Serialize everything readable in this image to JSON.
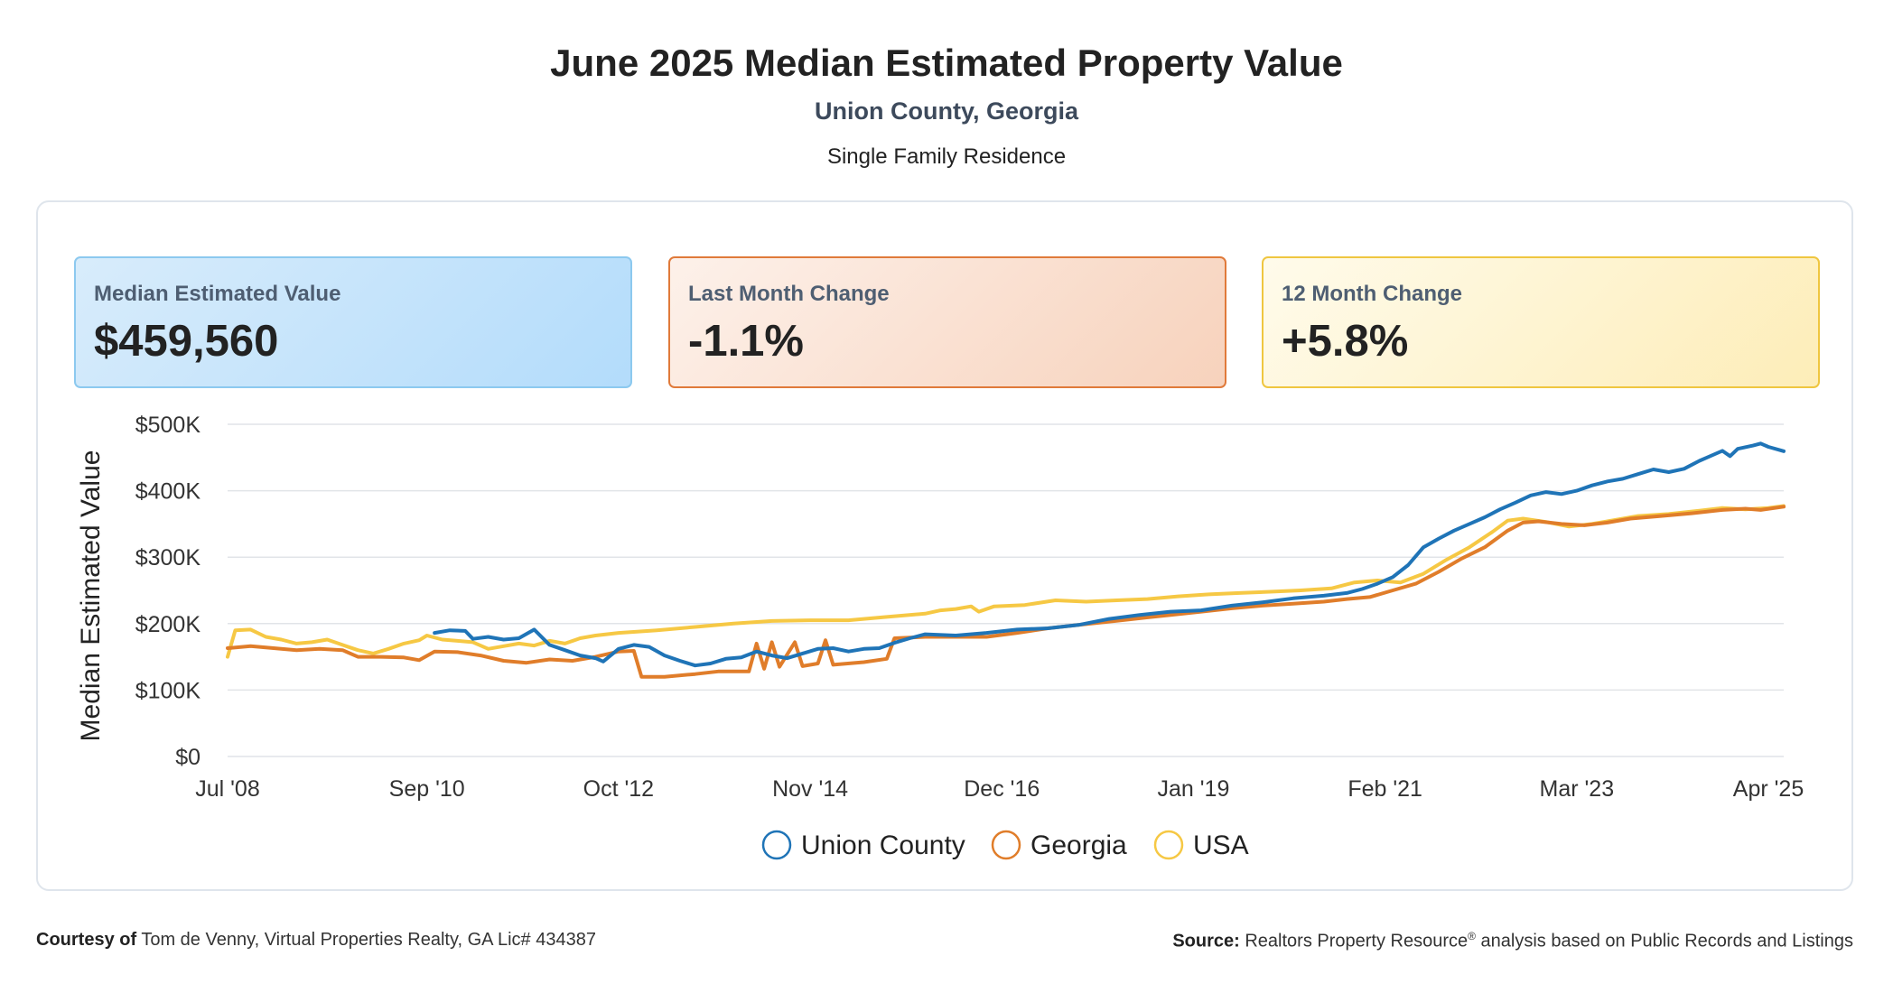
{
  "header": {
    "title": "June 2025 Median Estimated Property Value",
    "subtitle": "Union County, Georgia",
    "property_type": "Single Family Residence"
  },
  "cards": [
    {
      "label": "Median Estimated Value",
      "value": "$459,560"
    },
    {
      "label": "Last Month Change",
      "value": "-1.1%"
    },
    {
      "label": "12 Month Change",
      "value": "+5.8%"
    }
  ],
  "colors": {
    "union_county": "#1f74b7",
    "georgia": "#e07d2a",
    "usa": "#f6c844"
  },
  "chart_data": {
    "type": "line",
    "title": "",
    "ylabel": "Median Estimated Value",
    "xlabel": "",
    "y_ticks": [
      "$0",
      "$100K",
      "$200K",
      "$300K",
      "$400K",
      "$500K"
    ],
    "y_tick_values": [
      0,
      100000,
      200000,
      300000,
      400000,
      500000
    ],
    "ylim": [
      0,
      500000
    ],
    "x_ticks": [
      "Jul '08",
      "Sep '10",
      "Oct '12",
      "Nov '14",
      "Dec '16",
      "Jan '19",
      "Feb '21",
      "Mar '23",
      "Apr '25"
    ],
    "x_tick_dates": [
      "2008-07",
      "2010-09",
      "2012-10",
      "2014-11",
      "2016-12",
      "2019-01",
      "2021-02",
      "2023-03",
      "2025-04"
    ],
    "xlim": [
      "2008-07",
      "2025-06"
    ],
    "grid": "horizontal",
    "legend_position": "bottom",
    "series": [
      {
        "name": "Union County",
        "color": "#1f74b7",
        "points": [
          [
            "2010-10",
            186000
          ],
          [
            "2010-12",
            190000
          ],
          [
            "2011-02",
            189000
          ],
          [
            "2011-03",
            177000
          ],
          [
            "2011-05",
            180000
          ],
          [
            "2011-07",
            176000
          ],
          [
            "2011-09",
            178000
          ],
          [
            "2011-11",
            191000
          ],
          [
            "2012-01",
            168000
          ],
          [
            "2012-03",
            160000
          ],
          [
            "2012-05",
            152000
          ],
          [
            "2012-07",
            148000
          ],
          [
            "2012-08",
            143000
          ],
          [
            "2012-10",
            162000
          ],
          [
            "2012-12",
            168000
          ],
          [
            "2013-02",
            165000
          ],
          [
            "2013-04",
            152000
          ],
          [
            "2013-06",
            144000
          ],
          [
            "2013-08",
            137000
          ],
          [
            "2013-10",
            140000
          ],
          [
            "2013-12",
            147000
          ],
          [
            "2014-02",
            149000
          ],
          [
            "2014-04",
            158000
          ],
          [
            "2014-06",
            152000
          ],
          [
            "2014-08",
            148000
          ],
          [
            "2014-10",
            155000
          ],
          [
            "2014-12",
            162000
          ],
          [
            "2015-02",
            163000
          ],
          [
            "2015-04",
            158000
          ],
          [
            "2015-06",
            162000
          ],
          [
            "2015-08",
            163000
          ],
          [
            "2015-10",
            171000
          ],
          [
            "2015-12",
            178000
          ],
          [
            "2016-02",
            184000
          ],
          [
            "2016-06",
            182000
          ],
          [
            "2016-10",
            186000
          ],
          [
            "2017-02",
            191000
          ],
          [
            "2017-06",
            193000
          ],
          [
            "2017-10",
            198000
          ],
          [
            "2018-02",
            207000
          ],
          [
            "2018-06",
            213000
          ],
          [
            "2018-10",
            218000
          ],
          [
            "2019-02",
            220000
          ],
          [
            "2019-06",
            227000
          ],
          [
            "2019-10",
            232000
          ],
          [
            "2020-02",
            238000
          ],
          [
            "2020-06",
            242000
          ],
          [
            "2020-09",
            246000
          ],
          [
            "2020-11",
            252000
          ],
          [
            "2021-01",
            260000
          ],
          [
            "2021-03",
            270000
          ],
          [
            "2021-05",
            288000
          ],
          [
            "2021-07",
            315000
          ],
          [
            "2021-09",
            328000
          ],
          [
            "2021-11",
            340000
          ],
          [
            "2022-01",
            350000
          ],
          [
            "2022-03",
            360000
          ],
          [
            "2022-05",
            372000
          ],
          [
            "2022-07",
            382000
          ],
          [
            "2022-09",
            393000
          ],
          [
            "2022-11",
            398000
          ],
          [
            "2023-01",
            395000
          ],
          [
            "2023-03",
            400000
          ],
          [
            "2023-05",
            408000
          ],
          [
            "2023-07",
            414000
          ],
          [
            "2023-09",
            418000
          ],
          [
            "2023-11",
            425000
          ],
          [
            "2024-01",
            432000
          ],
          [
            "2024-03",
            428000
          ],
          [
            "2024-05",
            433000
          ],
          [
            "2024-07",
            445000
          ],
          [
            "2024-08",
            450000
          ],
          [
            "2024-10",
            460000
          ],
          [
            "2024-11",
            452000
          ],
          [
            "2024-12",
            463000
          ],
          [
            "2025-02",
            468000
          ],
          [
            "2025-03",
            471000
          ],
          [
            "2025-04",
            466000
          ],
          [
            "2025-06",
            459560
          ]
        ]
      },
      {
        "name": "Georgia",
        "color": "#e07d2a",
        "points": [
          [
            "2008-07",
            163000
          ],
          [
            "2008-10",
            166000
          ],
          [
            "2009-01",
            163000
          ],
          [
            "2009-04",
            160000
          ],
          [
            "2009-07",
            162000
          ],
          [
            "2009-10",
            160000
          ],
          [
            "2009-12",
            150000
          ],
          [
            "2010-03",
            150000
          ],
          [
            "2010-06",
            149000
          ],
          [
            "2010-08",
            145000
          ],
          [
            "2010-10",
            158000
          ],
          [
            "2011-01",
            157000
          ],
          [
            "2011-04",
            152000
          ],
          [
            "2011-07",
            144000
          ],
          [
            "2011-10",
            141000
          ],
          [
            "2012-01",
            146000
          ],
          [
            "2012-04",
            144000
          ],
          [
            "2012-07",
            150000
          ],
          [
            "2012-10",
            158000
          ],
          [
            "2012-12",
            159000
          ],
          [
            "2013-01",
            120000
          ],
          [
            "2013-04",
            120000
          ],
          [
            "2013-08",
            124000
          ],
          [
            "2013-11",
            128000
          ],
          [
            "2014-03",
            128000
          ],
          [
            "2014-04",
            170000
          ],
          [
            "2014-05",
            132000
          ],
          [
            "2014-06",
            172000
          ],
          [
            "2014-07",
            135000
          ],
          [
            "2014-09",
            172000
          ],
          [
            "2014-10",
            136000
          ],
          [
            "2014-12",
            140000
          ],
          [
            "2015-01",
            175000
          ],
          [
            "2015-02",
            138000
          ],
          [
            "2015-06",
            142000
          ],
          [
            "2015-09",
            147000
          ],
          [
            "2015-10",
            178000
          ],
          [
            "2016-02",
            180000
          ],
          [
            "2016-06",
            180000
          ],
          [
            "2016-10",
            180000
          ],
          [
            "2017-02",
            186000
          ],
          [
            "2017-06",
            193000
          ],
          [
            "2017-10",
            198000
          ],
          [
            "2018-02",
            203000
          ],
          [
            "2018-06",
            208000
          ],
          [
            "2018-10",
            213000
          ],
          [
            "2019-02",
            218000
          ],
          [
            "2019-06",
            223000
          ],
          [
            "2019-10",
            227000
          ],
          [
            "2020-02",
            230000
          ],
          [
            "2020-06",
            233000
          ],
          [
            "2020-09",
            237000
          ],
          [
            "2020-12",
            240000
          ],
          [
            "2021-03",
            250000
          ],
          [
            "2021-06",
            260000
          ],
          [
            "2021-09",
            278000
          ],
          [
            "2021-12",
            298000
          ],
          [
            "2022-03",
            315000
          ],
          [
            "2022-06",
            340000
          ],
          [
            "2022-08",
            352000
          ],
          [
            "2022-10",
            354000
          ],
          [
            "2023-01",
            350000
          ],
          [
            "2023-04",
            348000
          ],
          [
            "2023-07",
            352000
          ],
          [
            "2023-10",
            358000
          ],
          [
            "2024-02",
            362000
          ],
          [
            "2024-06",
            366000
          ],
          [
            "2024-10",
            371000
          ],
          [
            "2025-01",
            373000
          ],
          [
            "2025-03",
            371000
          ],
          [
            "2025-06",
            376000
          ]
        ]
      },
      {
        "name": "USA",
        "color": "#f6c844",
        "points": [
          [
            "2008-07",
            150000
          ],
          [
            "2008-08",
            190000
          ],
          [
            "2008-10",
            191000
          ],
          [
            "2008-12",
            180000
          ],
          [
            "2009-02",
            176000
          ],
          [
            "2009-04",
            170000
          ],
          [
            "2009-06",
            172000
          ],
          [
            "2009-08",
            176000
          ],
          [
            "2009-10",
            168000
          ],
          [
            "2009-12",
            160000
          ],
          [
            "2010-02",
            155000
          ],
          [
            "2010-04",
            162000
          ],
          [
            "2010-06",
            170000
          ],
          [
            "2010-08",
            175000
          ],
          [
            "2010-09",
            182000
          ],
          [
            "2010-11",
            176000
          ],
          [
            "2011-01",
            174000
          ],
          [
            "2011-03",
            172000
          ],
          [
            "2011-05",
            162000
          ],
          [
            "2011-07",
            166000
          ],
          [
            "2011-09",
            170000
          ],
          [
            "2011-11",
            167000
          ],
          [
            "2012-01",
            174000
          ],
          [
            "2012-03",
            170000
          ],
          [
            "2012-05",
            178000
          ],
          [
            "2012-07",
            182000
          ],
          [
            "2012-10",
            186000
          ],
          [
            "2013-03",
            190000
          ],
          [
            "2013-08",
            195000
          ],
          [
            "2014-01",
            200000
          ],
          [
            "2014-06",
            204000
          ],
          [
            "2014-11",
            205000
          ],
          [
            "2015-04",
            205000
          ],
          [
            "2015-09",
            210000
          ],
          [
            "2016-02",
            215000
          ],
          [
            "2016-04",
            220000
          ],
          [
            "2016-06",
            222000
          ],
          [
            "2016-08",
            226000
          ],
          [
            "2016-09",
            218000
          ],
          [
            "2016-11",
            226000
          ],
          [
            "2017-03",
            228000
          ],
          [
            "2017-07",
            235000
          ],
          [
            "2017-11",
            233000
          ],
          [
            "2018-03",
            235000
          ],
          [
            "2018-07",
            237000
          ],
          [
            "2018-11",
            241000
          ],
          [
            "2019-03",
            244000
          ],
          [
            "2019-07",
            246000
          ],
          [
            "2019-11",
            248000
          ],
          [
            "2020-03",
            250000
          ],
          [
            "2020-07",
            253000
          ],
          [
            "2020-10",
            262000
          ],
          [
            "2021-01",
            265000
          ],
          [
            "2021-04",
            262000
          ],
          [
            "2021-07",
            275000
          ],
          [
            "2021-10",
            296000
          ],
          [
            "2022-01",
            315000
          ],
          [
            "2022-04",
            338000
          ],
          [
            "2022-06",
            355000
          ],
          [
            "2022-08",
            358000
          ],
          [
            "2022-11",
            353000
          ],
          [
            "2023-02",
            346000
          ],
          [
            "2023-05",
            350000
          ],
          [
            "2023-08",
            356000
          ],
          [
            "2023-11",
            362000
          ],
          [
            "2024-03",
            365000
          ],
          [
            "2024-07",
            370000
          ],
          [
            "2024-10",
            374000
          ],
          [
            "2025-01",
            372000
          ],
          [
            "2025-04",
            374000
          ],
          [
            "2025-06",
            377000
          ]
        ]
      }
    ]
  },
  "footer": {
    "courtesy_label": "Courtesy of",
    "courtesy_text": "Tom de Venny, Virtual Properties Realty, GA Lic# 434387",
    "source_label": "Source:",
    "source_text": "Realtors Property Resource",
    "source_sup": "®",
    "source_tail": "analysis based on Public Records and Listings"
  }
}
